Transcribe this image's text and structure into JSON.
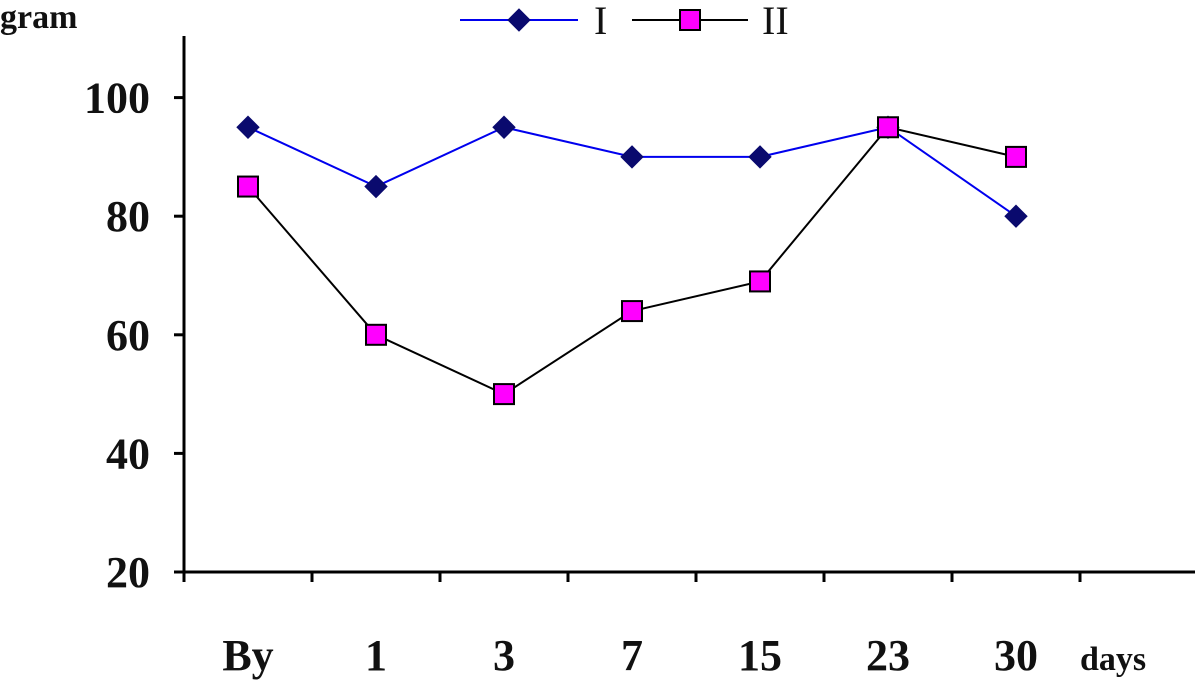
{
  "chart_data": {
    "type": "line",
    "ylabel": "gram",
    "xlabel": "days",
    "categories": [
      "By",
      "1",
      "3",
      "7",
      "15",
      "23",
      "30"
    ],
    "ylim": [
      20,
      110
    ],
    "yticks": [
      20,
      40,
      60,
      80,
      100
    ],
    "grid": false,
    "legend_position": "top-center",
    "series": [
      {
        "name": "I",
        "values": [
          95,
          85,
          95,
          90,
          90,
          95,
          80
        ],
        "color": "#0000ee",
        "marker_color": "#0a0a6e",
        "marker": "diamond"
      },
      {
        "name": "II",
        "values": [
          85,
          60,
          50,
          64,
          69,
          95,
          90
        ],
        "color": "#000000",
        "marker_color": "#ff00ff",
        "marker": "square"
      }
    ]
  }
}
